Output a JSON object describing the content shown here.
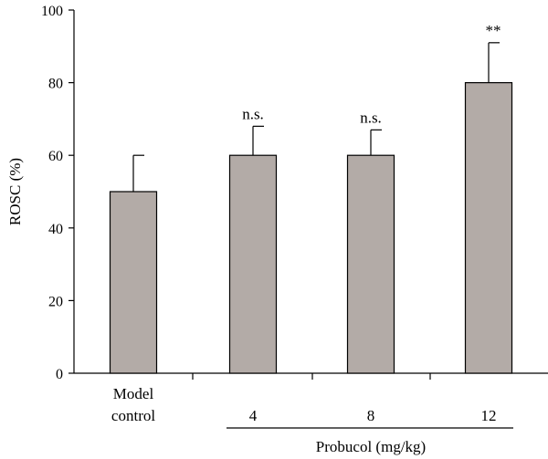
{
  "chart_data": {
    "type": "bar",
    "ylabel": "ROSC (%)",
    "ylim": [
      0,
      100
    ],
    "yticks": [
      0,
      20,
      40,
      60,
      80,
      100
    ],
    "categories": [
      {
        "lines": [
          "Model",
          "control"
        ],
        "value": 50,
        "error": 10,
        "annotation": ""
      },
      {
        "lines": [
          "4"
        ],
        "value": 60,
        "error": 8,
        "annotation": "n.s."
      },
      {
        "lines": [
          "8"
        ],
        "value": 60,
        "error": 7,
        "annotation": "n.s."
      },
      {
        "lines": [
          "12"
        ],
        "value": 80,
        "error": 11,
        "annotation": "**"
      }
    ],
    "group_label": "Probucol (mg/kg)",
    "bar_color": "#b3aba7",
    "grid": false
  }
}
